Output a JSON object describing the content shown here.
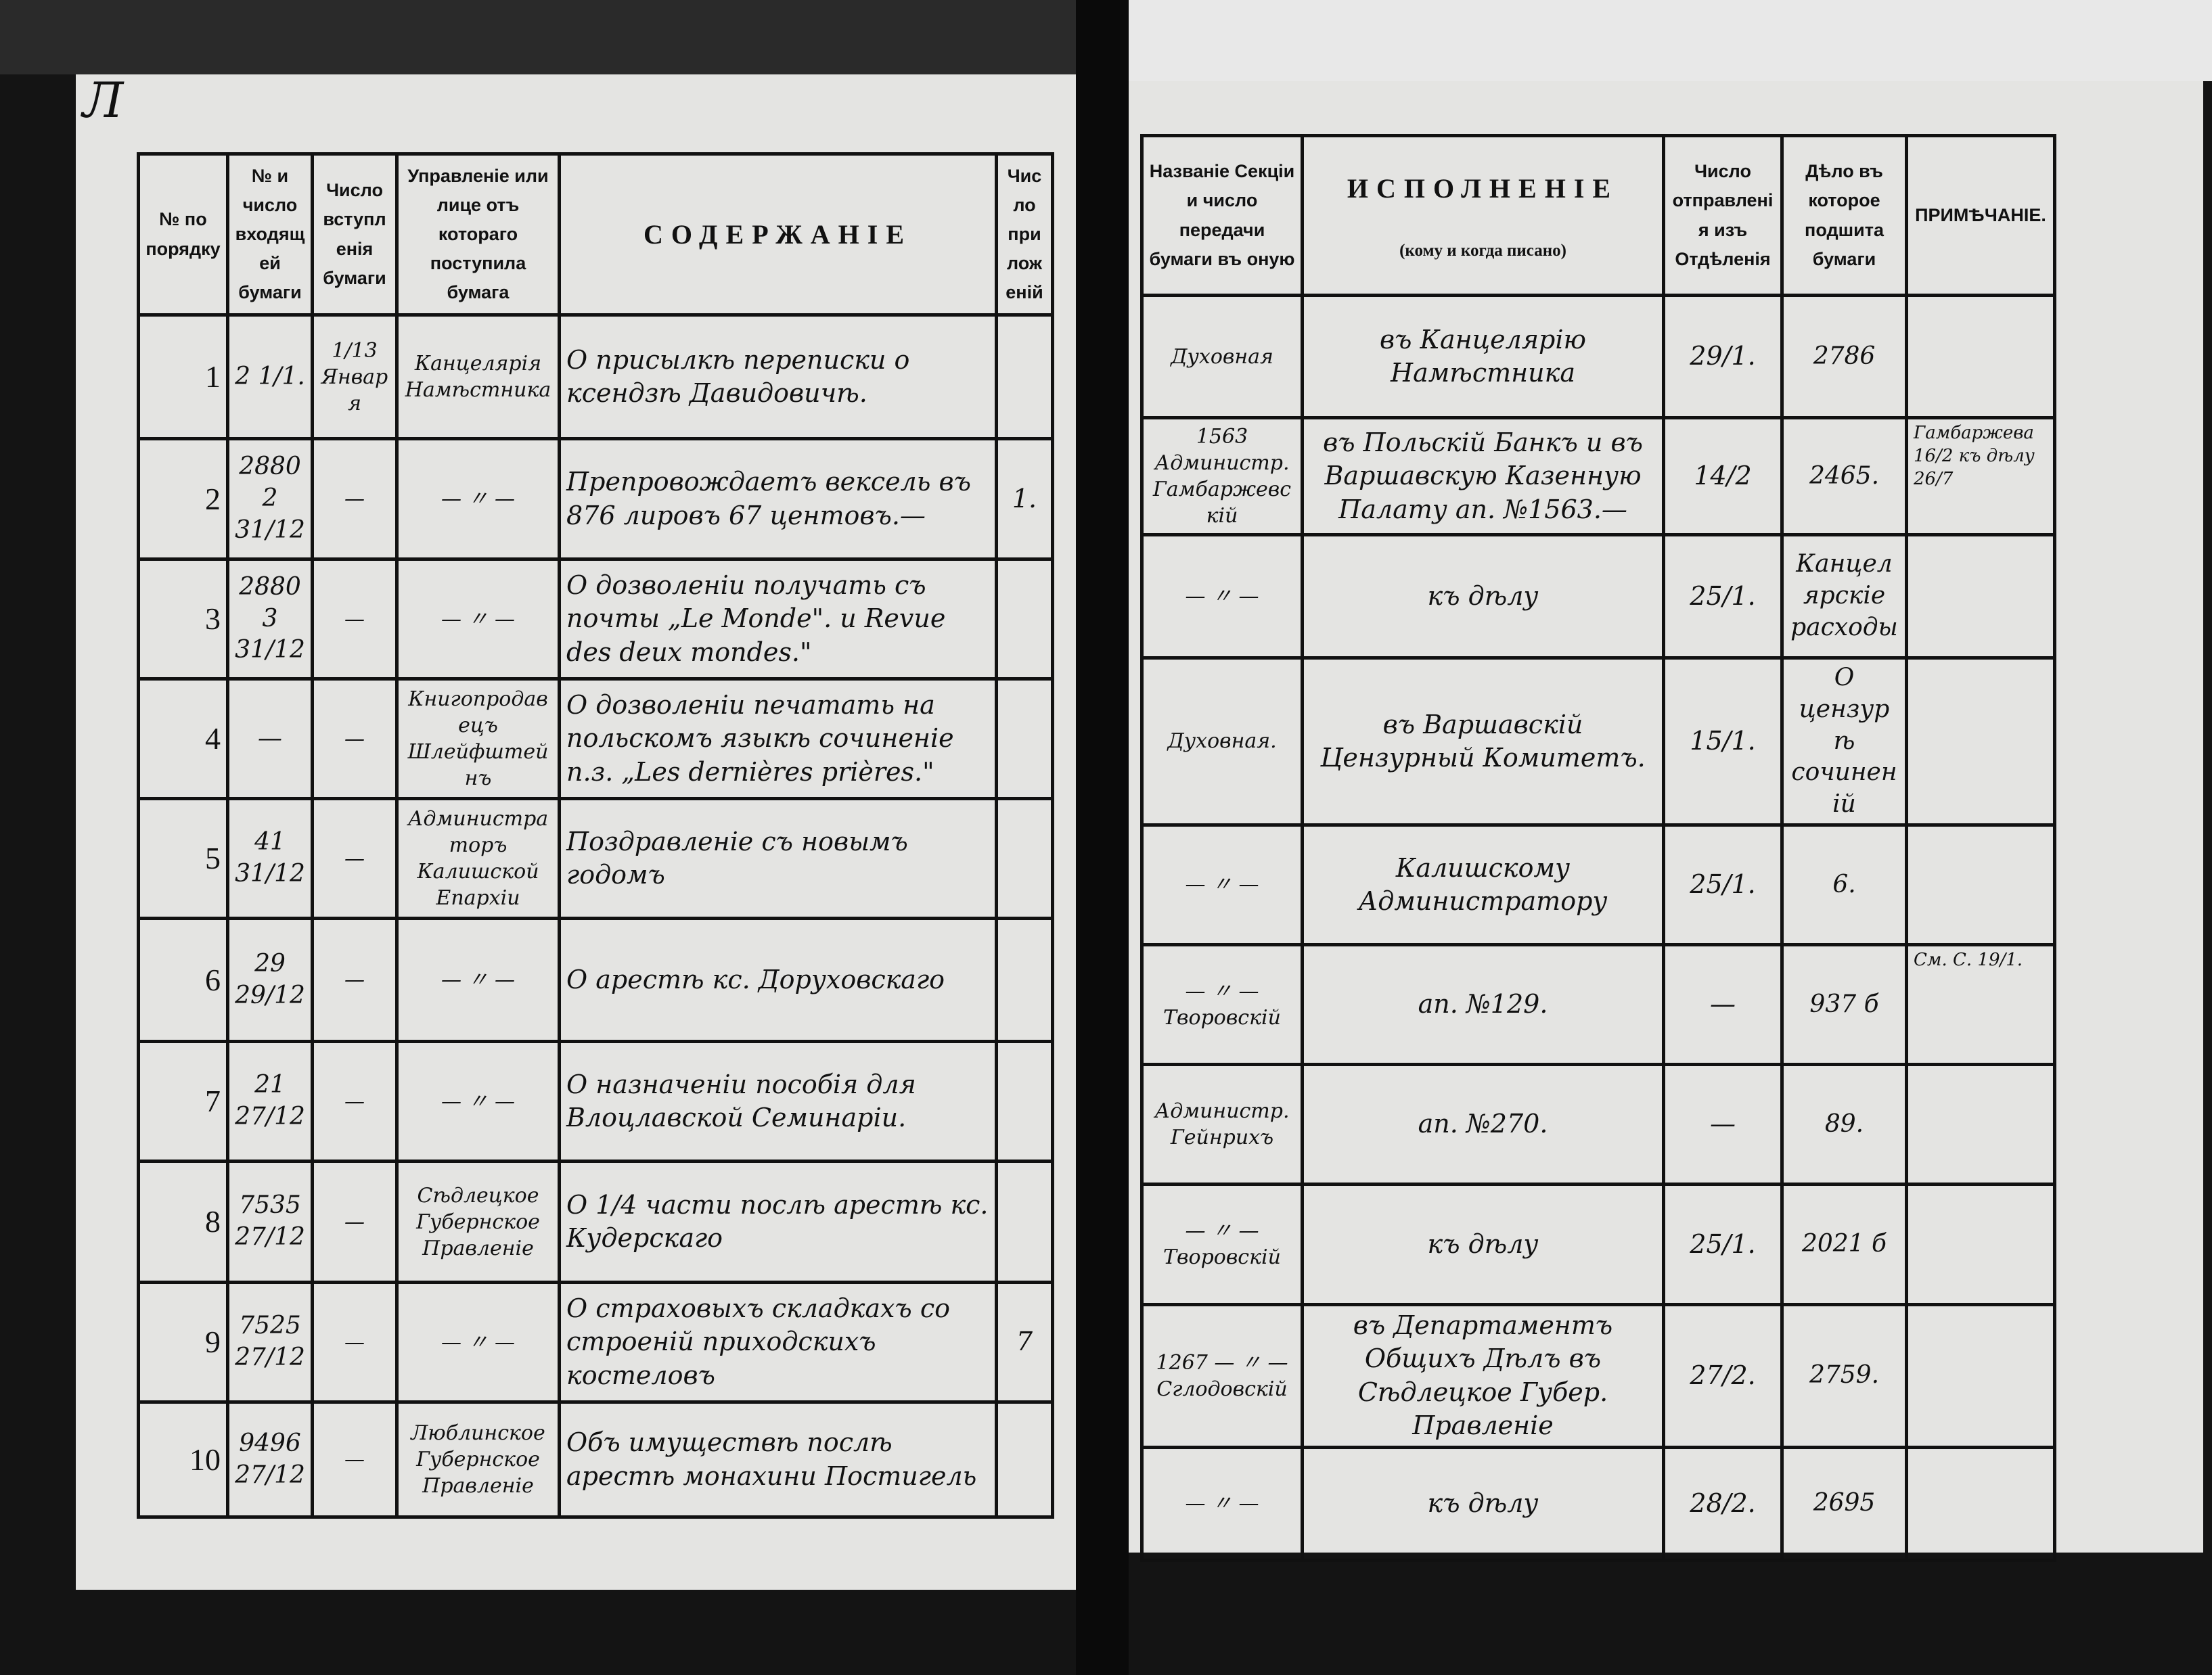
{
  "page_mark": "Л",
  "left": {
    "headers": [
      "№ по порядку",
      "№ и число входящей бумаги",
      "Число вступленія бумаги",
      "Управленіе или лице отъ котораго поступила бумага",
      "СОДЕРЖАНІЕ",
      "Число приложеній"
    ],
    "rows": [
      [
        "1",
        "2 1/1.",
        "1/13 Января",
        "Канцелярія Намѣстника",
        "О присылкѣ переписки о ксендзѣ Давидовичѣ.",
        ""
      ],
      [
        "2",
        "28802 31/12",
        "—",
        "— 〃 —",
        "Препровождаетъ вексель въ 876 лировъ 67 центовъ.—",
        "1."
      ],
      [
        "3",
        "28803 31/12",
        "—",
        "— 〃 —",
        "О дозволеніи получать съ почты „Le Monde\". и Revue des deux mondes.\"",
        ""
      ],
      [
        "4",
        "—",
        "—",
        "Книгопродавецъ Шлейфштейнъ",
        "О дозволеніи печатать на польскомъ языкѣ сочиненіе п.з. „Les dernières prières.\"",
        ""
      ],
      [
        "5",
        "41 31/12",
        "—",
        "Администраторъ Калишской Епархіи",
        "Поздравленіе съ новымъ годомъ",
        ""
      ],
      [
        "6",
        "29 29/12",
        "—",
        "— 〃 —",
        "О арестѣ кс. Доруховскаго",
        ""
      ],
      [
        "7",
        "21 27/12",
        "—",
        "— 〃 —",
        "О назначеніи пособія для Влоцлавской Семинаріи.",
        ""
      ],
      [
        "8",
        "7535 27/12",
        "—",
        "Сѣдлецкое Губернское Правленіе",
        "О 1/4 части послѣ арестѣ кс. Кудерскаго",
        ""
      ],
      [
        "9",
        "7525 27/12",
        "—",
        "— 〃 —",
        "О страховыхъ складкахъ со строеній приходскихъ костеловъ",
        "7"
      ],
      [
        "10",
        "9496 27/12",
        "—",
        "Люблинское Губернское Правленіе",
        "Объ имуществѣ послѣ арестѣ монахини Постигель",
        ""
      ]
    ]
  },
  "right": {
    "headers": [
      "Названіе Секціи и число передачи бумаги въ оную",
      "ИСПОЛНЕНІЕ",
      "Число отправленія изъ Отдѣленія",
      "Дѣло въ которое подшита бумаги",
      "ПРИМѢЧАНІЕ."
    ],
    "header_sub": "(кому и когда писано)",
    "rows": [
      [
        "Духовная",
        "въ Канцелярію Намѣстника",
        "29/1.",
        "2786",
        ""
      ],
      [
        "1563 Администр. Гамбаржевскій",
        "въ Польскій Банкъ и въ Варшавскую Казенную Палату ап. №1563.—",
        "14/2",
        "2465.",
        "Гамбаржева 16/2 къ дѣлу 26/7"
      ],
      [
        "— 〃 —",
        "къ дѣлу",
        "25/1.",
        "Канцелярскіе расходы",
        ""
      ],
      [
        "Духовная.",
        "въ Варшавскій Цензурный Комитетъ.",
        "15/1.",
        "О цензурѣ сочиненій",
        ""
      ],
      [
        "— 〃 —",
        "Калишскому Администратору",
        "25/1.",
        "6.",
        ""
      ],
      [
        "— 〃 — Творовскій",
        "ап. №129.",
        "—",
        "937 б",
        "См. С. 19/1."
      ],
      [
        "Администр. Гейнрихъ",
        "ап. №270.",
        "—",
        "89.",
        ""
      ],
      [
        "— 〃 — Творовскій",
        "къ дѣлу",
        "25/1.",
        "2021 б",
        ""
      ],
      [
        "1267 — 〃 — Сглодовскій",
        "въ Департаментъ Общихъ Дѣлъ въ Сѣдлецкое Губер. Правленіе",
        "27/2.",
        "2759.",
        ""
      ],
      [
        "— 〃 —",
        "къ дѣлу",
        "28/2.",
        "2695",
        ""
      ]
    ]
  }
}
